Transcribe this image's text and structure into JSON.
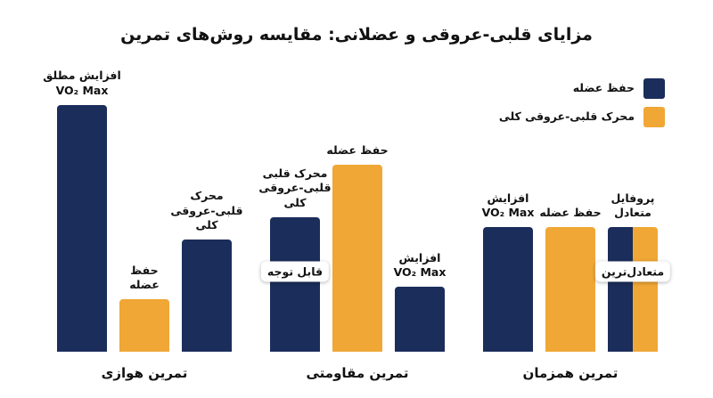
{
  "chart_data": {
    "type": "bar",
    "title": "مزایای قلبی-عروقی و عضلانی: مقایسه روش‌های تمرین",
    "ylim": [
      0,
      100
    ],
    "legend": [
      {
        "name": "حفظ عضله",
        "color": "#1b2d5b"
      },
      {
        "name": "محرک قلبی-عروقی کلی",
        "color": "#f0a736"
      }
    ],
    "groups": [
      {
        "name": "تمرین هوازی",
        "bars": [
          {
            "label": [
              "افزایش مطلق",
              "VO₂ Max"
            ],
            "value": 99,
            "color": "#1b2d5b"
          },
          {
            "label": [
              "حفظ",
              "عضله"
            ],
            "value": 21,
            "color": "#f0a736"
          },
          {
            "label": [
              "محرک",
              "قلبی-عروقی",
              "کلی"
            ],
            "value": 45,
            "color": "#1b2d5b"
          }
        ]
      },
      {
        "name": "تمرین مقاومتی",
        "bars": [
          {
            "label": [
              "محرک قلبی",
              "قلبی-عروقی",
              "کلی"
            ],
            "value": 54,
            "color": "#1b2d5b",
            "badge": "قابل توجه"
          },
          {
            "label": [
              "حفظ عضله"
            ],
            "value": 75,
            "color": "#f0a736"
          },
          {
            "label": [
              "افزایش",
              "VO₂ Max"
            ],
            "value": 26,
            "color": "#1b2d5b"
          }
        ]
      },
      {
        "name": "تمرین همزمان",
        "bars": [
          {
            "label": [
              "افزایش",
              "VO₂ Max"
            ],
            "value": 50,
            "color": "#1b2d5b"
          },
          {
            "label": [
              "حفظ عضله"
            ],
            "value": 50,
            "color": "#f0a736"
          },
          {
            "label": [
              "پروفایل",
              "متعادل"
            ],
            "value": 50,
            "colors": [
              "#1b2d5b",
              "#f0a736"
            ],
            "badge": "متعادل‌ترین"
          }
        ]
      }
    ]
  }
}
